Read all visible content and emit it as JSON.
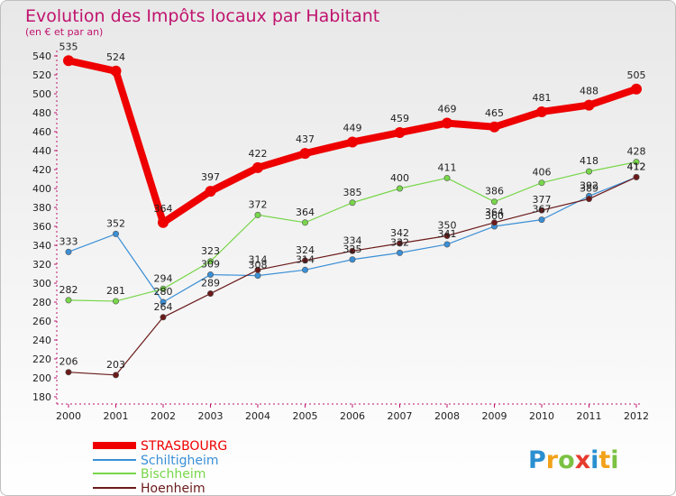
{
  "chart_data": {
    "type": "line",
    "title": "Evolution des Impôts locaux par Habitant",
    "subtitle": "(en € et par an)",
    "xlabel": "",
    "ylabel": "",
    "x": [
      "2000",
      "2001",
      "2002",
      "2003",
      "2004",
      "2005",
      "2006",
      "2007",
      "2008",
      "2009",
      "2010",
      "2011",
      "2012"
    ],
    "ylim": [
      180,
      540
    ],
    "ytick_step": 20,
    "grid": false,
    "legend_position": "bottom-left",
    "series": [
      {
        "name": "STRASBOURG",
        "color": "#ee0000",
        "values": [
          535,
          524,
          364,
          397,
          422,
          437,
          449,
          459,
          469,
          465,
          481,
          488,
          505
        ],
        "labels": [
          "535",
          "524",
          "364",
          "397",
          "422",
          "437",
          "449",
          "459",
          "469",
          "465",
          "481",
          "488",
          "505"
        ]
      },
      {
        "name": "Schiltigheim",
        "color": "#3a8fd6",
        "values": [
          333,
          352,
          280,
          309,
          308,
          314,
          325,
          332,
          341,
          360,
          367,
          392,
          412
        ],
        "labels": [
          "333",
          "352",
          "280",
          "309",
          "308",
          "314",
          "325",
          "332",
          "341",
          "360",
          "367",
          "392",
          "412"
        ]
      },
      {
        "name": "Bischheim",
        "color": "#78d64a",
        "values": [
          282,
          281,
          294,
          323,
          372,
          364,
          385,
          400,
          411,
          386,
          406,
          418,
          428
        ],
        "labels": [
          "282",
          "281",
          "294",
          "323",
          "372",
          "364",
          "385",
          "400",
          "411",
          "386",
          "406",
          "418",
          "428"
        ]
      },
      {
        "name": "Hoenheim",
        "color": "#6b1a1a",
        "values": [
          206,
          203,
          264,
          289,
          314,
          324,
          334,
          342,
          350,
          364,
          377,
          389,
          412
        ],
        "labels": [
          "206",
          "203",
          "264",
          "289",
          "314",
          "324",
          "334",
          "342",
          "350",
          "364",
          "377",
          "389",
          "412"
        ]
      }
    ]
  },
  "logo": {
    "text": "Proxiti",
    "letter_colors": [
      "#2a8fd0",
      "#f2a21a",
      "#7bc142",
      "#e63b2e",
      "#2a8fd0",
      "#f2a21a",
      "#7bc142"
    ]
  }
}
